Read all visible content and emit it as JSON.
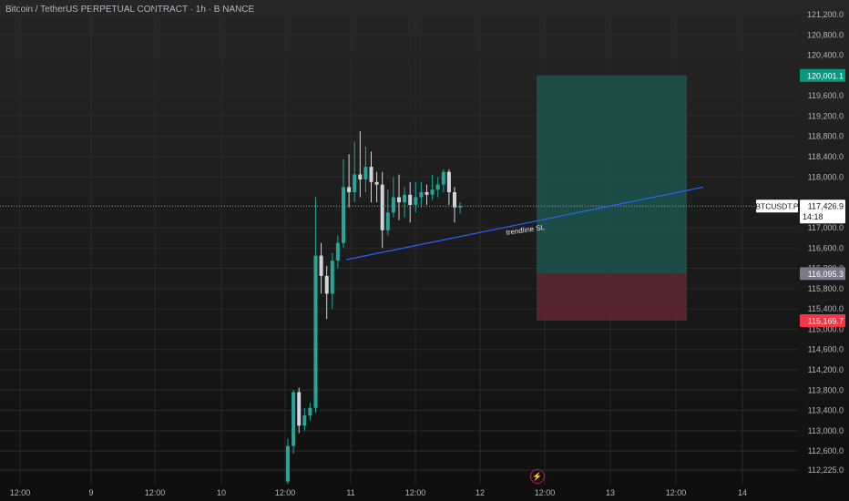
{
  "header": {
    "title": "Bitcoin / TetherUS PERPETUAL CONTRACT · 1h · BINANCE"
  },
  "chart_data": {
    "type": "candlestick",
    "symbol": "BTCUSDT.P",
    "ylim": [
      112000,
      121400
    ],
    "price_ticks": [
      "121,200.0",
      "120,800.0",
      "120,400.0",
      "119,600.0",
      "119,200.0",
      "118,800.0",
      "118,400.0",
      "118,000.0",
      "117,000.0",
      "116,600.0",
      "116,200.0",
      "115,800.0",
      "115,400.0",
      "115,000.0",
      "114,600.0",
      "114,200.0",
      "113,800.0",
      "113,400.0",
      "113,000.0",
      "112,600.0",
      "112,225.0"
    ],
    "time_ticks": [
      "12:00",
      "9",
      "12:00",
      "10",
      "12:00",
      "11",
      "12:00",
      "12",
      "12:00",
      "13",
      "12:00",
      "14"
    ],
    "price_labels": {
      "take_profit": {
        "value": 120001.1,
        "text": "120,001.1",
        "color": "#089981"
      },
      "current": {
        "value": 117426.9,
        "text": "117,426.9",
        "countdown": "14:18",
        "symbol": "BTCUSDT.P"
      },
      "entry": {
        "value": 116095.3,
        "text": "116,095.3",
        "color": "#787b86"
      },
      "stop_loss": {
        "value": 115169.7,
        "text": "115,169.7",
        "color": "#f23645"
      }
    },
    "annotation": "trendline SL",
    "trendline": {
      "color": "#2962ff",
      "start": [
        "11 00:00",
        116370
      ],
      "end": [
        "14 06:00",
        117800
      ]
    },
    "candles": [
      [
        "o",
        112000,
        "c",
        112700,
        "h",
        112850,
        "l",
        111950
      ],
      [
        "o",
        112700,
        "c",
        113760,
        "h",
        113800,
        "l",
        112550
      ],
      [
        "o",
        113760,
        "c",
        113100,
        "h",
        113850,
        "l",
        112950
      ],
      [
        "o",
        113100,
        "c",
        113300,
        "h",
        113450,
        "l",
        113000
      ],
      [
        "o",
        113300,
        "c",
        113450,
        "h",
        113550,
        "l",
        113200
      ],
      [
        "o",
        113450,
        "c",
        116450,
        "h",
        117600,
        "l",
        113350
      ],
      [
        "o",
        116450,
        "c",
        116050,
        "h",
        116700,
        "l",
        115700
      ],
      [
        "o",
        116050,
        "c",
        115700,
        "h",
        116250,
        "l",
        115200
      ],
      [
        "o",
        115700,
        "c",
        116350,
        "h",
        116500,
        "l",
        115400
      ],
      [
        "o",
        116350,
        "c",
        116700,
        "h",
        116850,
        "l",
        116200
      ],
      [
        "o",
        116700,
        "c",
        117800,
        "h",
        118350,
        "l",
        116600
      ],
      [
        "o",
        117800,
        "c",
        117700,
        "h",
        118450,
        "l",
        117400
      ],
      [
        "o",
        117700,
        "c",
        118050,
        "h",
        118700,
        "l",
        117500
      ],
      [
        "o",
        118050,
        "c",
        117950,
        "h",
        118900,
        "l",
        117600
      ],
      [
        "o",
        117950,
        "c",
        118200,
        "h",
        118600,
        "l",
        117700
      ],
      [
        "o",
        118200,
        "c",
        117900,
        "h",
        118500,
        "l",
        117500
      ],
      [
        "o",
        117900,
        "c",
        117850,
        "h",
        118100,
        "l",
        117500
      ],
      [
        "o",
        117850,
        "c",
        116950,
        "h",
        118100,
        "l",
        116600
      ],
      [
        "o",
        116950,
        "c",
        117300,
        "h",
        117750,
        "l",
        116850
      ],
      [
        "o",
        117300,
        "c",
        117600,
        "h",
        118000,
        "l",
        117200
      ],
      [
        "o",
        117600,
        "c",
        117500,
        "h",
        118050,
        "l",
        117150
      ],
      [
        "o",
        117500,
        "c",
        117650,
        "h",
        117800,
        "l",
        117200
      ],
      [
        "o",
        117650,
        "c",
        117450,
        "h",
        117900,
        "l",
        117100
      ],
      [
        "o",
        117450,
        "c",
        117600,
        "h",
        117900,
        "l",
        117300
      ],
      [
        "o",
        117600,
        "c",
        117700,
        "h",
        117900,
        "l",
        117400
      ],
      [
        "o",
        117700,
        "c",
        117650,
        "h",
        117850,
        "l",
        117450
      ],
      [
        "o",
        117650,
        "c",
        117750,
        "h",
        118050,
        "l",
        117550
      ],
      [
        "o",
        117750,
        "c",
        117850,
        "h",
        118000,
        "l",
        117600
      ],
      [
        "o",
        117850,
        "c",
        118100,
        "h",
        118150,
        "l",
        117700
      ],
      [
        "o",
        118100,
        "c",
        117700,
        "h",
        118150,
        "l",
        117450
      ],
      [
        "o",
        117700,
        "c",
        117400,
        "h",
        117800,
        "l",
        117100
      ],
      [
        "o",
        117400,
        "c",
        117430,
        "h",
        117500,
        "l",
        117280
      ]
    ],
    "colors": {
      "up": "#26a69a",
      "down": "#d1d4dc",
      "tp_zone": "#1b5e54",
      "sl_zone": "#6b2a31",
      "grid": "#2a2a2a"
    }
  }
}
